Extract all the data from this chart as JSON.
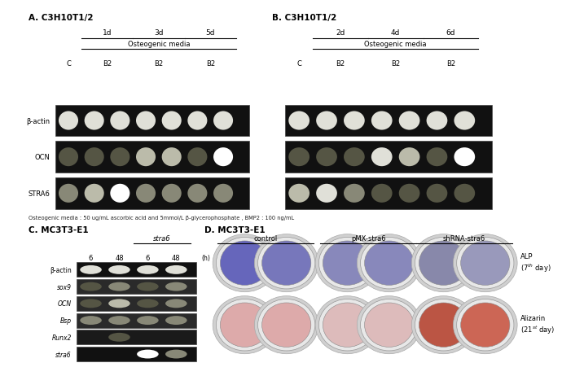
{
  "panel_A_label": "A. C3H10T1/2",
  "panel_B_label": "B. C3H10T1/2",
  "panel_C_label": "C. MC3T3-E1",
  "panel_D_label": "D. MC3T3-E1",
  "time_labels_A": [
    "1d",
    "3d",
    "5d"
  ],
  "time_labels_B": [
    "2d",
    "4d",
    "6d"
  ],
  "col_labels": [
    "C",
    "B2",
    "B2",
    "B2"
  ],
  "osteogenic_label": "Osteogenic media",
  "footnote": "Osteogenic media : 50 ug/mL ascorbic acid and 5mmol/L β-glycerophosphate , BMP2 : 100 ng/mL",
  "gene_labels_AB": [
    "STRA6",
    "OCN",
    "β-actin"
  ],
  "gene_labels_C": [
    "stra6",
    "Runx2",
    "Bsp",
    "OCN",
    "sox9",
    "β-actin"
  ],
  "col_labels_C": [
    "6",
    "48",
    "6",
    "48"
  ],
  "stra6_bracket_label": "stra6",
  "h_label": "(h)",
  "group_labels_D": [
    "control",
    "pMX-stra6",
    "shRNA-stra6"
  ],
  "ALP_label": "ALP\n(7$^{th}$ day)",
  "Alizarin_label": "Alizarin\n(21$^{st}$ day)",
  "stra6_bands_A": [
    0.35,
    0.55,
    0.9,
    0.4,
    0.35,
    0.3,
    0.3
  ],
  "ocn_bands_A": [
    0.1,
    0.1,
    0.2,
    0.55,
    0.65,
    0.25,
    0.95
  ],
  "bactin_bands_A": [
    0.8,
    0.8,
    0.8,
    0.8,
    0.8,
    0.75,
    0.8
  ],
  "stra6_bands_B": [
    0.5,
    0.75,
    0.45,
    0.2,
    0.2,
    0.2,
    0.2
  ],
  "ocn_bands_B": [
    0.1,
    0.15,
    0.15,
    0.8,
    0.55,
    0.15,
    0.95
  ],
  "bactin_bands_B": [
    0.8,
    0.8,
    0.8,
    0.8,
    0.8,
    0.8,
    0.8
  ],
  "bands_C_stra6": [
    0.0,
    0.0,
    0.95,
    0.4
  ],
  "bands_C_Runx2": [
    0.0,
    0.25,
    0.0,
    0.0
  ],
  "bands_C_Bsp": [
    0.3,
    0.4,
    0.35,
    0.4
  ],
  "bands_C_OCN": [
    0.1,
    0.55,
    0.1,
    0.4
  ],
  "bands_C_sox9": [
    0.25,
    0.3,
    0.25,
    0.3
  ],
  "bands_C_bactin": [
    0.8,
    0.85,
    0.8,
    0.85
  ],
  "ALP_colors": [
    "#6666bb",
    "#7777bb",
    "#8888bb",
    "#8888bb",
    "#8888aa",
    "#9999bb"
  ],
  "ALZ_colors": [
    "#ddaaaa",
    "#ddaaaa",
    "#ddbbbb",
    "#ddbbbb",
    "#bb5544",
    "#cc6655"
  ],
  "gel_bg": "#111111",
  "gel_edge": "#555555",
  "bg_color": "#ffffff"
}
